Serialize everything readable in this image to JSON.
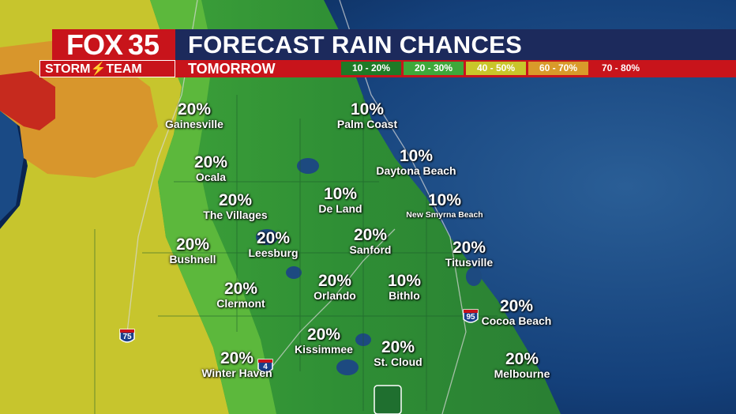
{
  "header": {
    "title": "FORECAST RAIN CHANCES",
    "subtitle": "TOMORROW",
    "logo_fox": "FOX",
    "logo_number": "35",
    "logo_team": "STORM⚡TEAM"
  },
  "legend": [
    {
      "label": "10 - 20%",
      "color": "#1f7a26"
    },
    {
      "label": "20 - 30%",
      "color": "#3ea83a"
    },
    {
      "label": "40 - 50%",
      "color": "#c9c62a"
    },
    {
      "label": "60 - 70%",
      "color": "#d99a2a"
    },
    {
      "label": "70 - 80%",
      "color": "#c8141b"
    }
  ],
  "locations": [
    {
      "id": "gainesville",
      "percent": "20%",
      "name": "Gainesville"
    },
    {
      "id": "palm-coast",
      "percent": "10%",
      "name": "Palm Coast"
    },
    {
      "id": "ocala",
      "percent": "20%",
      "name": "Ocala"
    },
    {
      "id": "daytona-beach",
      "percent": "10%",
      "name": "Daytona Beach"
    },
    {
      "id": "the-villages",
      "percent": "20%",
      "name": "The Villages"
    },
    {
      "id": "de-land",
      "percent": "10%",
      "name": "De Land"
    },
    {
      "id": "new-smyrna-beach",
      "percent": "10%",
      "name": "New Smyrna Beach"
    },
    {
      "id": "bushnell",
      "percent": "20%",
      "name": "Bushnell"
    },
    {
      "id": "leesburg",
      "percent": "20%",
      "name": "Leesburg"
    },
    {
      "id": "sanford",
      "percent": "20%",
      "name": "Sanford"
    },
    {
      "id": "titusville",
      "percent": "20%",
      "name": "Titusville"
    },
    {
      "id": "clermont",
      "percent": "20%",
      "name": "Clermont"
    },
    {
      "id": "orlando",
      "percent": "20%",
      "name": "Orlando"
    },
    {
      "id": "bithlo",
      "percent": "10%",
      "name": "Bithlo"
    },
    {
      "id": "cocoa-beach",
      "percent": "20%",
      "name": "Cocoa Beach"
    },
    {
      "id": "kissimmee",
      "percent": "20%",
      "name": "Kissimmee"
    },
    {
      "id": "st-cloud",
      "percent": "20%",
      "name": "St. Cloud"
    },
    {
      "id": "winter-haven",
      "percent": "20%",
      "name": "Winter Haven"
    },
    {
      "id": "melbourne",
      "percent": "20%",
      "name": "Melbourne"
    }
  ],
  "highways": [
    {
      "id": "i-75",
      "number": "75"
    },
    {
      "id": "i-95",
      "number": "95"
    },
    {
      "id": "i-4",
      "number": "4"
    }
  ],
  "colors": {
    "ocean": "#0c2e5e",
    "land_green": "#3ea83a",
    "land_dark_green": "#2e8a3a",
    "yellow_zone": "#c9c62a",
    "orange_zone": "#d99a2a",
    "red_zone": "#c8141b",
    "title_bar": "#1c2a5c",
    "subtitle_bar": "#c8141b"
  }
}
